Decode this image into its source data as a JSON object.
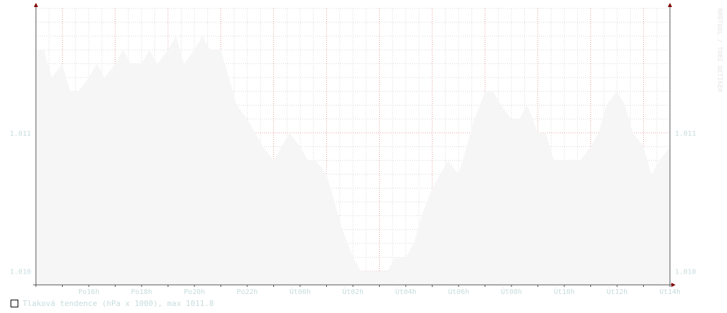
{
  "watermark": "RRDTOOL / TOBI OETIKER",
  "colors": {
    "axis": "#555555",
    "arrow": "#800000",
    "grid_minor": "#d8d8d8",
    "grid_major": "#e8a0a0",
    "area_fill": "#f6f6f6",
    "label": "#c8dcdc"
  },
  "chart_data": {
    "type": "area",
    "title": "",
    "xlabel": "",
    "ylabel": "",
    "x_ticks": [
      "Po16h",
      "Po18h",
      "Po20h",
      "Po22h",
      "Út00h",
      "Út02h",
      "Út04h",
      "Út06h",
      "Út08h",
      "Út10h",
      "Út12h",
      "Út14h"
    ],
    "y_tick_labels": [
      "1.011",
      "1.010"
    ],
    "y_ticks": [
      1.011,
      1.01
    ],
    "ylim": [
      1.0099,
      1.0119
    ],
    "xlim": [
      14.0,
      38.0
    ],
    "series": [
      {
        "name": "Tlaková tendence (hPa x 1000), max 1011.8",
        "x": [
          14.0,
          14.3,
          14.6,
          15.0,
          15.3,
          15.6,
          16.0,
          16.3,
          16.6,
          17.0,
          17.3,
          17.6,
          18.0,
          18.3,
          18.6,
          19.0,
          19.3,
          19.6,
          20.0,
          20.3,
          20.6,
          21.0,
          21.3,
          21.6,
          22.0,
          22.3,
          22.6,
          23.0,
          23.3,
          23.6,
          24.0,
          24.3,
          24.6,
          25.0,
          25.3,
          25.6,
          26.0,
          26.3,
          26.6,
          27.0,
          27.3,
          27.6,
          28.0,
          28.3,
          28.6,
          29.0,
          29.3,
          29.6,
          30.0,
          30.3,
          30.6,
          31.0,
          31.3,
          31.6,
          32.0,
          32.3,
          32.6,
          33.0,
          33.3,
          33.6,
          34.0,
          34.3,
          34.6,
          35.0,
          35.3,
          35.6,
          36.0,
          36.3,
          36.6,
          37.0,
          37.3,
          37.6,
          38.0
        ],
        "values": [
          1.0116,
          1.0116,
          1.0114,
          1.0115,
          1.0113,
          1.0113,
          1.0114,
          1.0115,
          1.0114,
          1.0115,
          1.0116,
          1.0115,
          1.0115,
          1.0116,
          1.0115,
          1.0116,
          1.0117,
          1.0115,
          1.0116,
          1.0117,
          1.0116,
          1.0116,
          1.0114,
          1.0112,
          1.0111,
          1.011,
          1.0109,
          1.0108,
          1.0109,
          1.011,
          1.0109,
          1.0108,
          1.0108,
          1.0107,
          1.0105,
          1.0103,
          1.0101,
          1.01,
          1.01,
          1.01,
          1.01,
          1.0101,
          1.0101,
          1.0102,
          1.0104,
          1.0106,
          1.0107,
          1.0108,
          1.0107,
          1.0109,
          1.0111,
          1.0113,
          1.0113,
          1.0112,
          1.0111,
          1.0111,
          1.0112,
          1.011,
          1.011,
          1.0108,
          1.0108,
          1.0108,
          1.0108,
          1.0109,
          1.011,
          1.0112,
          1.0113,
          1.0112,
          1.011,
          1.0109,
          1.0107,
          1.0108,
          1.0109
        ]
      }
    ],
    "grid": true,
    "legend_position": "bottom-left"
  }
}
